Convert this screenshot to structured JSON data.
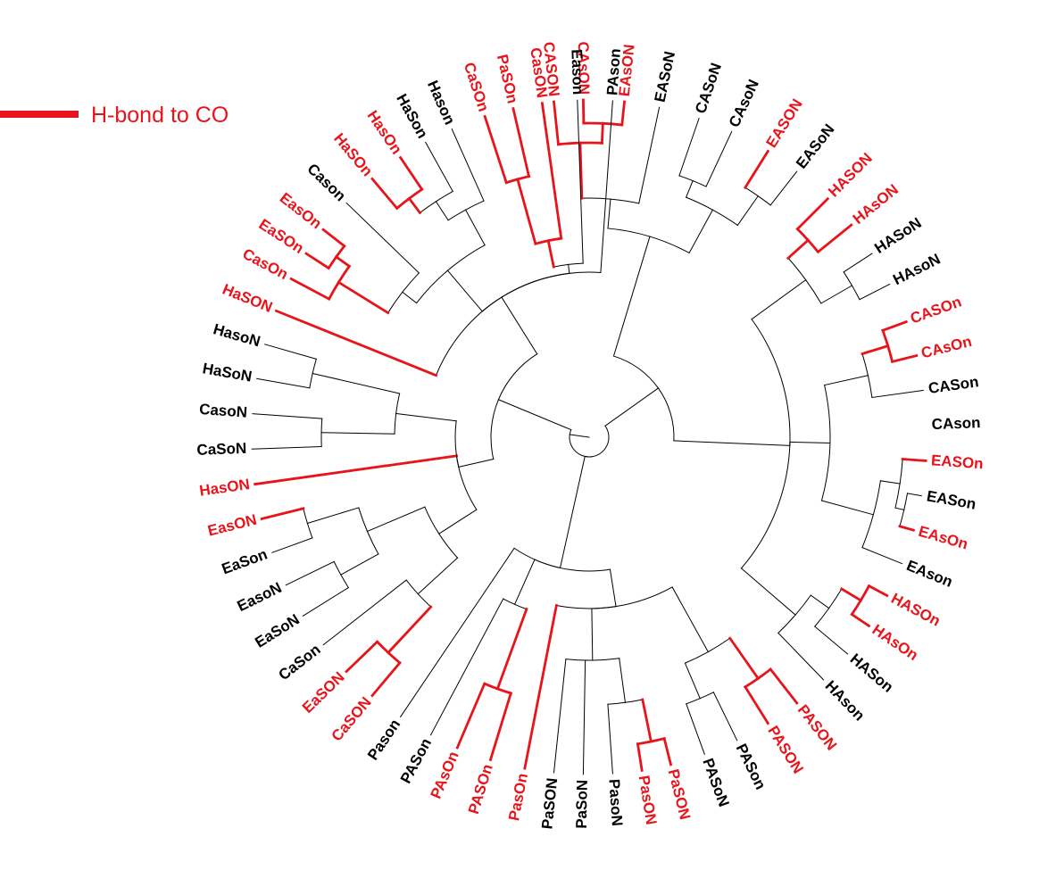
{
  "legend": {
    "label": "H-bond to CO",
    "color": "#e8141b"
  },
  "colors": {
    "highlight": "#e8141b",
    "normal": "#000000"
  },
  "tree": {
    "leaves": [
      {
        "name": "CASON",
        "angle": -96,
        "red": true
      },
      {
        "name": "CAsON",
        "angle": -91,
        "red": true
      },
      {
        "name": "EAsON",
        "angle": -84,
        "red": true
      },
      {
        "name": "EASoN",
        "angle": -78,
        "red": false
      },
      {
        "name": "CASoN",
        "angle": -71,
        "red": false
      },
      {
        "name": "CAsoN",
        "angle": -65,
        "red": false
      },
      {
        "name": "EASON",
        "angle": -58,
        "red": true
      },
      {
        "name": "EASoN",
        "angle": -52,
        "red": false
      },
      {
        "name": "HASON",
        "angle": -45,
        "red": true
      },
      {
        "name": "HAsON",
        "angle": -39,
        "red": true
      },
      {
        "name": "HASoN",
        "angle": -33,
        "red": false
      },
      {
        "name": "HAsoN",
        "angle": -27,
        "red": false
      },
      {
        "name": "CASOn",
        "angle": -20,
        "red": true
      },
      {
        "name": "CAsOn",
        "angle": -14,
        "red": true
      },
      {
        "name": "CASon",
        "angle": -8,
        "red": false
      },
      {
        "name": "CAson",
        "angle": -2,
        "red": false
      },
      {
        "name": "EASOn",
        "angle": 4,
        "red": true
      },
      {
        "name": "EASon",
        "angle": 10,
        "red": false
      },
      {
        "name": "EAsOn",
        "angle": 16,
        "red": true
      },
      {
        "name": "EAson",
        "angle": 22,
        "red": false
      },
      {
        "name": "HASOn",
        "angle": 28,
        "red": true
      },
      {
        "name": "HAsOn",
        "angle": 34,
        "red": true
      },
      {
        "name": "HASon",
        "angle": 40,
        "red": false
      },
      {
        "name": "HAson",
        "angle": 46,
        "red": false
      },
      {
        "name": "PASON",
        "angle": 52,
        "red": true
      },
      {
        "name": "PASON",
        "angle": 58,
        "red": true
      },
      {
        "name": "PASon",
        "angle": 64,
        "red": false
      },
      {
        "name": "PASoN",
        "angle": 70,
        "red": false
      },
      {
        "name": "PaSON",
        "angle": 76,
        "red": true
      },
      {
        "name": "PasON",
        "angle": 81,
        "red": true
      },
      {
        "name": "PasoN",
        "angle": 86,
        "red": false
      },
      {
        "name": "PaSoN",
        "angle": 91,
        "red": false
      },
      {
        "name": "PaSON",
        "angle": 96,
        "red": false
      },
      {
        "name": "PasOn",
        "angle": 101,
        "red": true
      },
      {
        "name": "PASOn",
        "angle": 107,
        "red": true
      },
      {
        "name": "PAsOn",
        "angle": 113,
        "red": true
      },
      {
        "name": "PASon",
        "angle": 118,
        "red": false
      },
      {
        "name": "Pason",
        "angle": 124,
        "red": false
      },
      {
        "name": "CaSON",
        "angle": 130,
        "red": true
      },
      {
        "name": "EaSON",
        "angle": 136,
        "red": true
      },
      {
        "name": "CaSon",
        "angle": 142,
        "red": false
      },
      {
        "name": "EaSoN",
        "angle": 148,
        "red": false
      },
      {
        "name": "EasoN",
        "angle": 154,
        "red": false
      },
      {
        "name": "EaSon",
        "angle": 160,
        "red": false
      },
      {
        "name": "EasON",
        "angle": 166,
        "red": true
      },
      {
        "name": "HasON",
        "angle": 172,
        "red": true
      },
      {
        "name": "CaSoN",
        "angle": 178,
        "red": false
      },
      {
        "name": "CasoN",
        "angle": 184,
        "red": false
      },
      {
        "name": "HaSoN",
        "angle": 190,
        "red": false
      },
      {
        "name": "HasoN",
        "angle": 196,
        "red": false
      },
      {
        "name": "HaSON",
        "angle": 202,
        "red": true
      },
      {
        "name": "CasOn",
        "angle": 208,
        "red": true
      },
      {
        "name": "EaSOn",
        "angle": 213,
        "red": true
      },
      {
        "name": "EasOn",
        "angle": 218,
        "red": true
      },
      {
        "name": "Cason",
        "angle": 224,
        "red": false
      },
      {
        "name": "HaSOn",
        "angle": 230,
        "red": true
      },
      {
        "name": "HasOn",
        "angle": 236,
        "red": true
      },
      {
        "name": "HaSon",
        "angle": 241,
        "red": false
      },
      {
        "name": "Hason",
        "angle": 246,
        "red": false
      },
      {
        "name": "CaSOn",
        "angle": 252,
        "red": true
      },
      {
        "name": "PaSOn",
        "angle": 257,
        "red": true
      },
      {
        "name": "CasON",
        "angle": 262,
        "red": true
      },
      {
        "name": "Eason",
        "angle": 268,
        "red": false
      },
      {
        "name": "PAson",
        "angle": 274,
        "red": false
      }
    ]
  }
}
